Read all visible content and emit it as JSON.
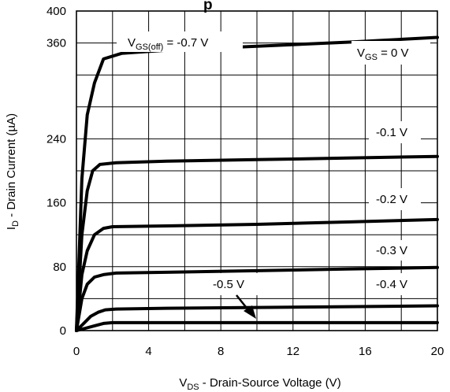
{
  "chart_data": {
    "type": "line",
    "title_fragment": "p",
    "xlabel": {
      "main": "V",
      "sub": "DS",
      "rest": " - Drain-Source Voltage (V)"
    },
    "ylabel": {
      "main": "I",
      "sub": "D",
      "rest": " - Drain Current (µA)"
    },
    "xlim": [
      0,
      20
    ],
    "ylim": [
      0,
      400
    ],
    "x_ticks": [
      0,
      4,
      8,
      12,
      16,
      20
    ],
    "y_ticks": [
      0,
      80,
      160,
      240,
      360,
      400
    ],
    "grid": true,
    "series": [
      {
        "name": "V_GS = 0 V",
        "x": [
          0,
          0.3,
          0.6,
          1.0,
          1.5,
          2.5,
          5,
          10,
          15,
          20
        ],
        "y": [
          0,
          190,
          270,
          310,
          340,
          347,
          351,
          356,
          361,
          367
        ]
      },
      {
        "name": "-0.1 V",
        "x": [
          0,
          0.3,
          0.6,
          0.9,
          1.3,
          2.2,
          5,
          10,
          15,
          20
        ],
        "y": [
          0,
          120,
          175,
          200,
          208,
          210,
          212,
          214,
          216,
          218
        ]
      },
      {
        "name": "-0.2 V",
        "x": [
          0,
          0.3,
          0.6,
          1.0,
          1.5,
          2.0,
          5,
          10,
          15,
          20
        ],
        "y": [
          0,
          70,
          100,
          120,
          128,
          130,
          131,
          133,
          136,
          139
        ]
      },
      {
        "name": "-0.3 V",
        "x": [
          0,
          0.3,
          0.6,
          1.0,
          1.5,
          2.2,
          5,
          10,
          15,
          20
        ],
        "y": [
          0,
          40,
          58,
          67,
          70,
          72,
          73,
          75,
          77,
          79
        ]
      },
      {
        "name": "-0.4 V",
        "x": [
          0,
          0.4,
          0.8,
          1.2,
          1.6,
          2.2,
          5,
          10,
          15,
          20
        ],
        "y": [
          0,
          9,
          18,
          23,
          26,
          27,
          28,
          29,
          30,
          31
        ]
      },
      {
        "name": "-0.5 V",
        "x": [
          0,
          0.5,
          1.0,
          1.5,
          2.0,
          5,
          10,
          15,
          20
        ],
        "y": [
          0,
          3,
          6,
          9,
          10,
          10,
          10,
          10,
          10
        ]
      }
    ],
    "annotations": {
      "vgs_off": {
        "main": "V",
        "sub": "GS(off)",
        "rest": " = -0.7 V"
      },
      "vgs0": {
        "main": "V",
        "sub": "GS",
        "rest": " = 0 V"
      },
      "m01": "-0.1 V",
      "m02": "-0.2 V",
      "m03": "-0.3 V",
      "m04": "-0.4 V",
      "m05": "-0.5 V"
    }
  }
}
